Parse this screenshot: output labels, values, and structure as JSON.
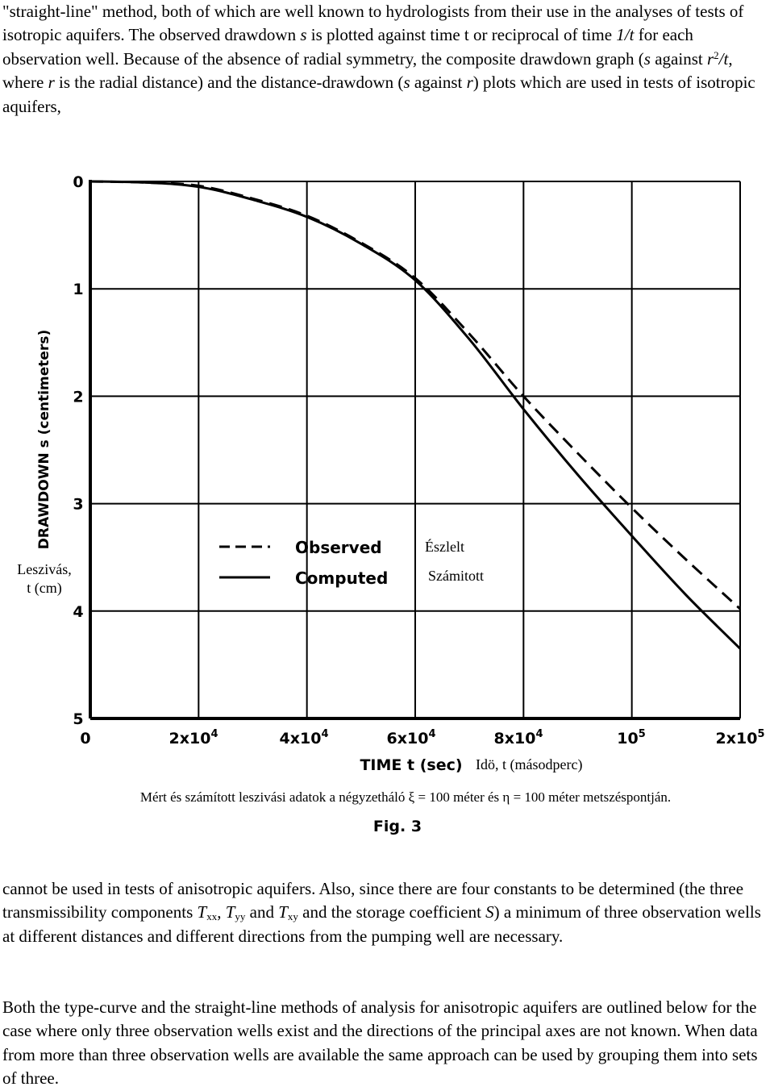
{
  "text": {
    "p1": {
      "s1": "\"straight-line\" method, both of which are well known to hydrologists from their use in the analyses of tests of isotropic aquifers. The observed drawdown ",
      "v_s": "s",
      "s2": " is plotted against time t or reciprocal of time ",
      "v_1t": "1/t",
      "s3": " for each observation well. Because of the absence of radial symmetry, the composite drawdown graph (",
      "v_s2": "s",
      "s4": " against ",
      "v_r": "r",
      "sup2": "2",
      "v_t": "/t",
      "s5": ", where ",
      "v_r2": "r",
      "s6": " is the radial distance) and the distance-drawdown (",
      "v_s3": "s",
      "s7": " against ",
      "v_r3": "r",
      "s8": ") plots which are used in tests of isotropic aquifers,"
    },
    "p2": {
      "s1": "cannot be used in tests of anisotropic aquifers. Also, since there are four constants to be determined (the three transmissibility components ",
      "t1": "T",
      "sub1": "xx",
      "s2": ", ",
      "t2": "T",
      "sub2": "yy",
      "s3": " and ",
      "t3": "T",
      "sub3": "xy",
      "s4": " and the storage coefficient ",
      "v_S": "S",
      "s5": ") a minimum of three observation wells at different distances and different directions from the pumping well are necessary."
    },
    "p3": "Both the type-curve and the straight-line methods of analysis for anisotropic aquifers are outlined below for the case where only three observation wells exist and the directions of the principal axes are not known. When data from more than three observation wells are available the same approach can be used by grouping them into sets of three."
  },
  "figure": {
    "ylabel_en": "DRAWDOWN s (centimeters)",
    "ylabel_hu_1": "Leszivás,",
    "ylabel_hu_2": "t (cm)",
    "xlabel_en": "TIME t (sec)",
    "xlabel_hu": "Idö, t (másodperc)",
    "caption_hu": "Mért és számított leszivási adatok a négyzetháló ξ = 100 méter és η = 100 méter metszéspontján.",
    "fig_label": "Fig. 3",
    "legend": {
      "observed": "Observed",
      "computed": "Computed",
      "observed_hu": "Észlelt",
      "computed_hu": "Számitott"
    },
    "y_ticks": [
      "0",
      "1",
      "2",
      "3",
      "4",
      "5"
    ],
    "x_ticks": [
      {
        "base": "0",
        "exp": ""
      },
      {
        "base": "2x10",
        "exp": "4"
      },
      {
        "base": "4x10",
        "exp": "4"
      },
      {
        "base": "6x10",
        "exp": "4"
      },
      {
        "base": "8x10",
        "exp": "4"
      },
      {
        "base": "10",
        "exp": "5"
      },
      {
        "base": "2x10",
        "exp": "5"
      }
    ]
  },
  "chart_data": {
    "type": "line",
    "xlabel": "TIME t (sec)",
    "ylabel": "DRAWDOWN s (centimeters)",
    "x_categories": [
      "0",
      "2x10^4",
      "4x10^4",
      "6x10^4",
      "8x10^4",
      "10^5",
      "2x10^5"
    ],
    "x_index_range": [
      0,
      6
    ],
    "ylim": [
      0,
      5
    ],
    "y_inverted": true,
    "grid": true,
    "legend_position": "center",
    "series": [
      {
        "name": "Observed",
        "style": "dashed",
        "x": [
          0,
          0.5,
          1,
          1.5,
          2,
          2.5,
          3,
          3.5,
          4,
          4.5,
          5,
          5.5,
          6
        ],
        "y": [
          0,
          0.01,
          0.04,
          0.16,
          0.32,
          0.57,
          0.9,
          1.42,
          2.0,
          2.53,
          3.04,
          3.52,
          3.98
        ]
      },
      {
        "name": "Computed",
        "style": "solid",
        "x": [
          0,
          0.5,
          1,
          1.5,
          2,
          2.5,
          3,
          3.5,
          4,
          4.5,
          5,
          5.5,
          6
        ],
        "y": [
          0,
          0.01,
          0.05,
          0.17,
          0.33,
          0.58,
          0.92,
          1.47,
          2.12,
          2.73,
          3.3,
          3.85,
          4.35
        ]
      }
    ]
  }
}
